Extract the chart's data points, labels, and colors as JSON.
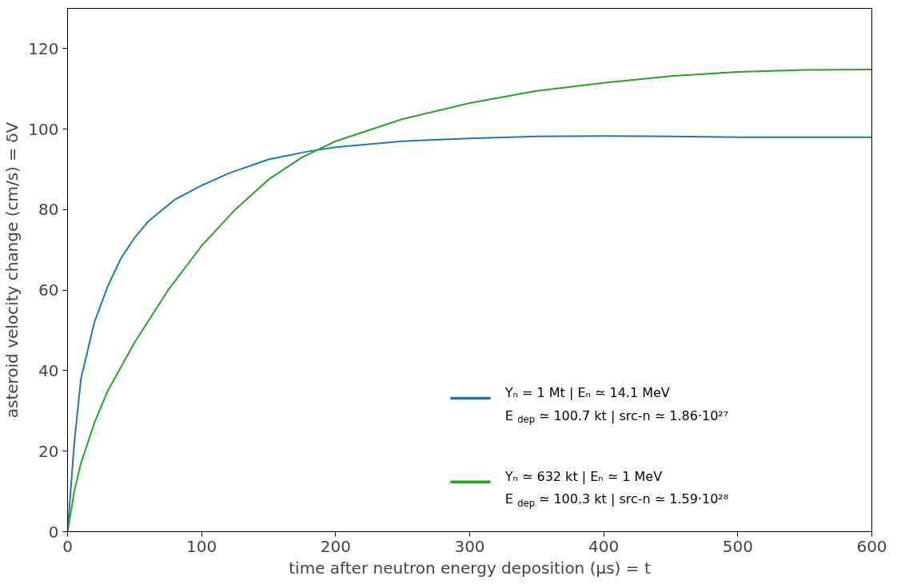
{
  "chart_data": {
    "type": "line",
    "xlabel": "time after neutron energy deposition (μs) = t",
    "ylabel": "asteroid velocity change (cm/s) = δV",
    "xlim": [
      0,
      600
    ],
    "ylim": [
      0,
      130
    ],
    "xticks": [
      0,
      100,
      200,
      300,
      400,
      500,
      600
    ],
    "yticks": [
      0,
      20,
      40,
      60,
      80,
      100,
      120
    ],
    "grid": false,
    "legend": "bottom right",
    "series": [
      {
        "name": "Yₙ = 1 Mt   |   Eₙ ≃ 14.1 MeV\nE$_{dep}$ ≃ 100.7 kt   |   src-n ≃ 1.86·10²⁷",
        "color": "#1f77b4",
        "x": [
          0,
          5,
          10,
          20,
          30,
          40,
          50,
          60,
          80,
          100,
          120,
          150,
          180,
          200,
          250,
          300,
          350,
          400,
          450,
          500,
          600
        ],
        "values": [
          0,
          22,
          38,
          52,
          61,
          68,
          73,
          77,
          82.5,
          86,
          89,
          92.5,
          94.5,
          95.5,
          97,
          97.7,
          98.2,
          98.3,
          98.2,
          98,
          98
        ]
      },
      {
        "name": "Yₙ ≃ 632 kt   |   Eₙ ≃ 1 MeV\nE$_{dep}$ ≃ 100.3 kt   |   src-n ≃ 1.59·10²⁸",
        "color": "#2ca02c",
        "x": [
          0,
          5,
          10,
          20,
          30,
          50,
          75,
          100,
          125,
          150,
          175,
          200,
          250,
          300,
          350,
          400,
          450,
          500,
          550,
          600
        ],
        "values": [
          0,
          10,
          17,
          27,
          35,
          47,
          60,
          71,
          80,
          87.5,
          93,
          97,
          102.5,
          106.5,
          109.5,
          111.5,
          113.2,
          114.2,
          114.7,
          114.8
        ]
      }
    ]
  }
}
